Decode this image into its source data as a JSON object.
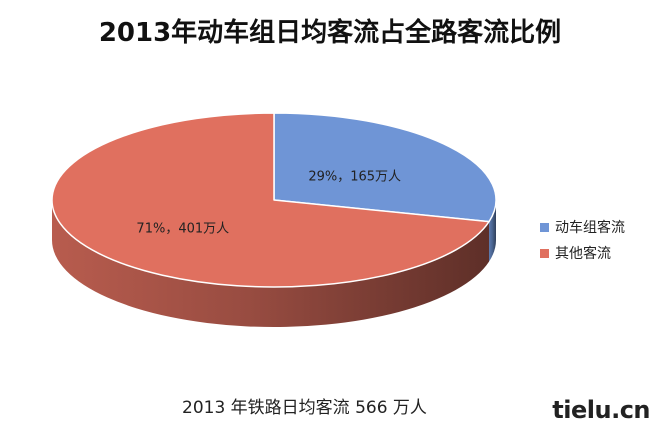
{
  "chart_data": {
    "type": "pie",
    "title": "2013年动车组日均客流占全路客流比例",
    "categories": [
      "动车组客流",
      "其他客流"
    ],
    "values": [
      29,
      71
    ],
    "slice_labels": [
      "29%，165万人",
      "71%，401万人"
    ],
    "colors": [
      "#6f95d6",
      "#e0705f"
    ],
    "style": "3d",
    "legend_position": "right",
    "caption": "2013 年铁路日均客流 566 万人"
  },
  "watermark": "tielu.cn"
}
